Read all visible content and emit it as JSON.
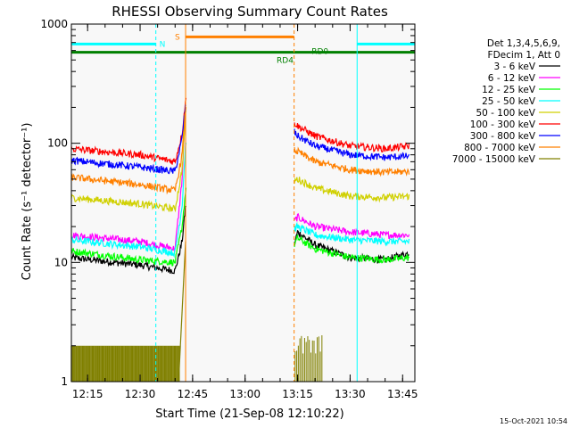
{
  "chart_data": {
    "type": "line",
    "title": "RHESSI Observing Summary Count Rates",
    "xlabel": "Start Time (21-Sep-08 12:10:22)",
    "ylabel": "Count Rate (s⁻¹ detector⁻¹)",
    "y_scale": "log",
    "ylim": [
      1,
      1000
    ],
    "xlim": [
      "12:10:22",
      "13:48:30"
    ],
    "x_ticks": [
      "12:15",
      "12:30",
      "12:45",
      "13:00",
      "13:15",
      "13:30",
      "13:45"
    ],
    "y_ticks": [
      1,
      10,
      100,
      1000
    ],
    "grid": false,
    "legend_header": [
      "Det 1,3,4,5,6,9,",
      "FDecim 1, Att 0"
    ],
    "legend_position": "right",
    "timestamp": "15-Oct-2021 10:54",
    "series": [
      {
        "name": "3 - 6 keV",
        "color": "#000000",
        "x": [
          "12:10",
          "12:30",
          "12:40",
          "12:42",
          "12:43",
          "13:14",
          "13:15",
          "13:20",
          "13:30",
          "13:40",
          "13:47"
        ],
        "y": [
          11,
          9.5,
          8.5,
          15,
          30,
          14,
          18,
          14,
          11,
          10.5,
          12
        ]
      },
      {
        "name": "6 - 12 keV",
        "color": "#ff00ff",
        "x": [
          "12:10",
          "12:30",
          "12:40",
          "12:42",
          "12:43",
          "13:14",
          "13:15",
          "13:20",
          "13:30",
          "13:40",
          "13:47"
        ],
        "y": [
          17,
          15,
          13,
          50,
          200,
          22,
          24,
          20,
          18,
          17,
          17
        ]
      },
      {
        "name": "12 - 25 keV",
        "color": "#00ff00",
        "x": [
          "12:10",
          "12:30",
          "12:40",
          "12:42",
          "12:43",
          "13:14",
          "13:15",
          "13:20",
          "13:30",
          "13:40",
          "13:47"
        ],
        "y": [
          12.5,
          10.5,
          10,
          20,
          40,
          14,
          16,
          13,
          11,
          10.5,
          11
        ]
      },
      {
        "name": "25 - 50 keV",
        "color": "#00ffff",
        "x": [
          "12:10",
          "12:30",
          "12:40",
          "12:42",
          "12:43",
          "13:14",
          "13:15",
          "13:20",
          "13:30",
          "13:40",
          "13:47"
        ],
        "y": [
          15.5,
          13.5,
          12,
          30,
          100,
          19,
          20,
          17,
          15.5,
          15,
          15
        ]
      },
      {
        "name": "50 - 100 keV",
        "color": "#d0d000",
        "x": [
          "12:10",
          "12:30",
          "12:40",
          "12:42",
          "12:43",
          "13:14",
          "13:15",
          "13:20",
          "13:30",
          "13:40",
          "13:47"
        ],
        "y": [
          35,
          31,
          28,
          60,
          180,
          48,
          50,
          42,
          36,
          35,
          36
        ]
      },
      {
        "name": "100 - 300 keV",
        "color": "#ff0000",
        "x": [
          "12:10",
          "12:30",
          "12:40",
          "12:42",
          "12:43",
          "13:14",
          "13:15",
          "13:20",
          "13:30",
          "13:40",
          "13:47"
        ],
        "y": [
          90,
          80,
          70,
          120,
          230,
          150,
          140,
          115,
          95,
          90,
          95
        ]
      },
      {
        "name": "300 - 800 keV",
        "color": "#0000ff",
        "x": [
          "12:10",
          "12:30",
          "12:40",
          "12:42",
          "12:43",
          "13:14",
          "13:15",
          "13:20",
          "13:30",
          "13:40",
          "13:47"
        ],
        "y": [
          72,
          63,
          58,
          110,
          210,
          125,
          115,
          95,
          80,
          76,
          78
        ]
      },
      {
        "name": "800 - 7000 keV",
        "color": "#ff8000",
        "x": [
          "12:10",
          "12:30",
          "12:40",
          "12:42",
          "12:43",
          "13:14",
          "13:15",
          "13:20",
          "13:30",
          "13:40",
          "13:47"
        ],
        "y": [
          52,
          45,
          40,
          80,
          200,
          88,
          85,
          70,
          60,
          57,
          58
        ]
      },
      {
        "name": "7000 - 15000 keV",
        "color": "#808000",
        "x": [
          "12:10",
          "12:40",
          "12:41",
          "12:43"
        ],
        "y": [
          1.5,
          1.5,
          3,
          15
        ]
      }
    ],
    "annotations": [
      {
        "label": "N",
        "color": "#00ffff",
        "type": "interval",
        "level": 680,
        "x_start": "12:10:22",
        "x_end": "12:34:30"
      },
      {
        "label": "N",
        "color": "#00ffff",
        "type": "interval",
        "level": 680,
        "x_start": "13:32",
        "x_end": "13:48:30",
        "show_label": false
      },
      {
        "label": "S",
        "color": "#ff8000",
        "type": "interval",
        "level": 780,
        "x_start": "12:43",
        "x_end": "13:14"
      },
      {
        "label": "RD4",
        "color": "#008000",
        "type": "bar",
        "level": 580,
        "x_start": "12:10:22",
        "x_end": "13:48:30",
        "label_x": "13:09"
      },
      {
        "label": "RD0",
        "color": "#008000",
        "type": "bar-label",
        "level": 590,
        "label_x": "13:19"
      }
    ],
    "vertical_markers": [
      {
        "x": "12:34:30",
        "color": "#00ffff",
        "style": "dashed"
      },
      {
        "x": "12:43",
        "color": "#ff8000",
        "style": "solid"
      },
      {
        "x": "13:14",
        "color": "#ff8000",
        "style": "dashed"
      },
      {
        "x": "13:32",
        "color": "#00ffff",
        "style": "solid"
      },
      {
        "x": "13:48:30",
        "color": "#00ffff",
        "style": "dashed"
      }
    ],
    "attenuator_gaps": [
      {
        "x_start": "12:43",
        "x_end": "13:14"
      }
    ]
  }
}
